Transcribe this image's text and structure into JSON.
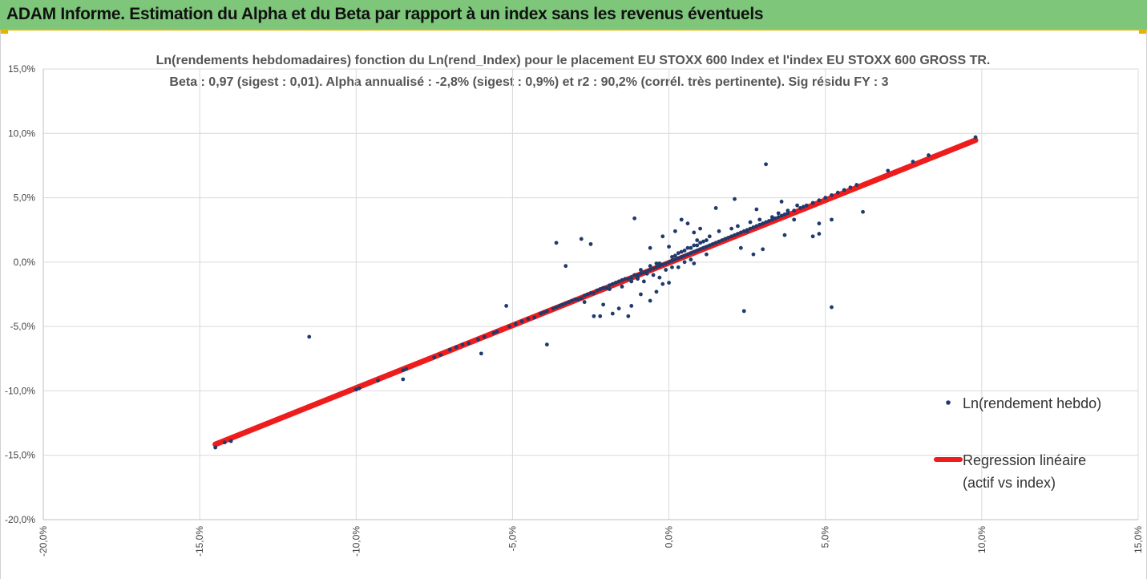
{
  "banner": {
    "title": "ADAM Informe. Estimation du Alpha et du Beta par rapport à un index sans les revenus éventuels",
    "background_color": "#7dc67a",
    "accent_color": "#e8b200"
  },
  "chart_data": {
    "type": "scatter",
    "title": "Ln(rendements hebdomadaires) fonction du Ln(rend_Index) pour le placement EU STOXX 600 Index et l'index EU STOXX 600 GROSS TR.",
    "subtitle": "Beta : 0,97 (sigest : 0,01). Alpha annualisé : -2,8% (sigest : 0,9%) et r2 : 90,2% (corrél. très pertinente). Sig résidu FY : 3",
    "xlabel": "",
    "ylabel": "",
    "xlim": [
      -0.2,
      0.15
    ],
    "ylim": [
      -0.2,
      0.15
    ],
    "x_ticks": [
      "-20,0%",
      "-15,0%",
      "-10,0%",
      "-5,0%",
      "0,0%",
      "5,0%",
      "10,0%",
      "15,0%"
    ],
    "y_ticks": [
      "-20,0%",
      "-15,0%",
      "-10,0%",
      "-5,0%",
      "0,0%",
      "5,0%",
      "10,0%",
      "15,0%"
    ],
    "grid": "vertical and horizontal",
    "legend_position": "right",
    "series": [
      {
        "name": "Ln(rendement hebdo)",
        "color": "#1f3a6b",
        "kind": "points",
        "points": [
          [
            -0.145,
            -0.144
          ],
          [
            -0.142,
            -0.14
          ],
          [
            -0.14,
            -0.139
          ],
          [
            -0.115,
            -0.058
          ],
          [
            -0.1,
            -0.099
          ],
          [
            -0.099,
            -0.098
          ],
          [
            -0.093,
            -0.092
          ],
          [
            -0.085,
            -0.084
          ],
          [
            -0.085,
            -0.091
          ],
          [
            -0.084,
            -0.083
          ],
          [
            -0.075,
            -0.074
          ],
          [
            -0.073,
            -0.072
          ],
          [
            -0.07,
            -0.068
          ],
          [
            -0.068,
            -0.066
          ],
          [
            -0.066,
            -0.064
          ],
          [
            -0.064,
            -0.063
          ],
          [
            -0.06,
            -0.071
          ],
          [
            -0.061,
            -0.06
          ],
          [
            -0.059,
            -0.058
          ],
          [
            -0.056,
            -0.055
          ],
          [
            -0.055,
            -0.054
          ],
          [
            -0.052,
            -0.034
          ],
          [
            -0.051,
            -0.05
          ],
          [
            -0.049,
            -0.048
          ],
          [
            -0.047,
            -0.046
          ],
          [
            -0.045,
            -0.044
          ],
          [
            -0.043,
            -0.043
          ],
          [
            -0.041,
            -0.04
          ],
          [
            -0.039,
            -0.064
          ],
          [
            -0.04,
            -0.039
          ],
          [
            -0.039,
            -0.038
          ],
          [
            -0.037,
            -0.036
          ],
          [
            -0.036,
            -0.035
          ],
          [
            -0.035,
            -0.034
          ],
          [
            -0.034,
            -0.033
          ],
          [
            -0.033,
            -0.032
          ],
          [
            -0.032,
            -0.031
          ],
          [
            -0.031,
            -0.03
          ],
          [
            -0.03,
            -0.029
          ],
          [
            -0.029,
            -0.029
          ],
          [
            -0.028,
            -0.028
          ],
          [
            -0.027,
            -0.026
          ],
          [
            -0.026,
            -0.025
          ],
          [
            -0.025,
            -0.024
          ],
          [
            -0.024,
            -0.024
          ],
          [
            -0.023,
            -0.022
          ],
          [
            -0.022,
            -0.021
          ],
          [
            -0.021,
            -0.02
          ],
          [
            -0.02,
            -0.02
          ],
          [
            -0.019,
            -0.018
          ],
          [
            -0.018,
            -0.017
          ],
          [
            -0.017,
            -0.016
          ],
          [
            -0.016,
            -0.015
          ],
          [
            -0.015,
            -0.014
          ],
          [
            -0.014,
            -0.013
          ],
          [
            -0.013,
            -0.013
          ],
          [
            -0.012,
            -0.012
          ],
          [
            -0.011,
            -0.01
          ],
          [
            -0.01,
            -0.01
          ],
          [
            -0.009,
            -0.009
          ],
          [
            -0.008,
            -0.008
          ],
          [
            -0.007,
            -0.007
          ],
          [
            -0.006,
            -0.006
          ],
          [
            -0.005,
            -0.005
          ],
          [
            -0.004,
            -0.004
          ],
          [
            -0.003,
            -0.003
          ],
          [
            -0.002,
            -0.002
          ],
          [
            -0.001,
            -0.001
          ],
          [
            0.0,
            0.0
          ],
          [
            0.001,
            0.001
          ],
          [
            0.002,
            0.002
          ],
          [
            0.003,
            0.003
          ],
          [
            0.004,
            0.004
          ],
          [
            0.005,
            0.005
          ],
          [
            0.006,
            0.006
          ],
          [
            0.007,
            0.007
          ],
          [
            0.008,
            0.008
          ],
          [
            0.009,
            0.009
          ],
          [
            0.01,
            0.01
          ],
          [
            0.011,
            0.011
          ],
          [
            0.012,
            0.012
          ],
          [
            0.013,
            0.013
          ],
          [
            0.014,
            0.014
          ],
          [
            0.015,
            0.015
          ],
          [
            0.016,
            0.016
          ],
          [
            0.017,
            0.017
          ],
          [
            0.018,
            0.018
          ],
          [
            0.019,
            0.019
          ],
          [
            0.02,
            0.02
          ],
          [
            0.021,
            0.021
          ],
          [
            0.022,
            0.022
          ],
          [
            0.023,
            0.023
          ],
          [
            0.024,
            0.024
          ],
          [
            0.025,
            0.025
          ],
          [
            0.026,
            0.026
          ],
          [
            0.027,
            0.027
          ],
          [
            0.028,
            0.028
          ],
          [
            0.029,
            0.029
          ],
          [
            0.03,
            0.03
          ],
          [
            0.031,
            0.031
          ],
          [
            0.032,
            0.032
          ],
          [
            0.033,
            0.033
          ],
          [
            0.034,
            0.034
          ],
          [
            0.035,
            0.035
          ],
          [
            0.036,
            0.036
          ],
          [
            0.037,
            0.037
          ],
          [
            0.038,
            0.038
          ],
          [
            0.04,
            0.04
          ],
          [
            0.042,
            0.042
          ],
          [
            0.044,
            0.044
          ],
          [
            0.046,
            0.046
          ],
          [
            0.048,
            0.048
          ],
          [
            0.05,
            0.05
          ],
          [
            0.052,
            0.052
          ],
          [
            0.054,
            0.054
          ],
          [
            0.056,
            0.056
          ],
          [
            0.058,
            0.058
          ],
          [
            0.06,
            0.06
          ],
          [
            0.062,
            0.039
          ],
          [
            0.07,
            0.071
          ],
          [
            0.078,
            0.078
          ],
          [
            0.083,
            0.083
          ],
          [
            0.098,
            0.097
          ],
          [
            -0.036,
            0.015
          ],
          [
            -0.028,
            0.018
          ],
          [
            -0.025,
            0.014
          ],
          [
            -0.033,
            -0.003
          ],
          [
            -0.011,
            0.034
          ],
          [
            -0.006,
            0.011
          ],
          [
            -0.002,
            0.02
          ],
          [
            0.0,
            0.012
          ],
          [
            0.002,
            0.024
          ],
          [
            0.004,
            0.033
          ],
          [
            0.006,
            0.03
          ],
          [
            0.008,
            0.023
          ],
          [
            0.01,
            0.026
          ],
          [
            0.031,
            0.076
          ],
          [
            0.021,
            0.049
          ],
          [
            0.015,
            0.042
          ],
          [
            0.025,
            0.024
          ],
          [
            0.028,
            0.041
          ],
          [
            0.036,
            0.047
          ],
          [
            0.04,
            0.033
          ],
          [
            0.043,
            0.043
          ],
          [
            0.048,
            0.03
          ],
          [
            0.052,
            0.033
          ],
          [
            0.052,
            -0.035
          ],
          [
            0.046,
            0.02
          ],
          [
            0.048,
            0.022
          ],
          [
            0.037,
            0.021
          ],
          [
            0.03,
            0.01
          ],
          [
            0.027,
            0.006
          ],
          [
            0.023,
            0.011
          ],
          [
            0.024,
            -0.038
          ],
          [
            0.012,
            0.006
          ],
          [
            0.008,
            -0.001
          ],
          [
            0.003,
            -0.004
          ],
          [
            0.0,
            -0.016
          ],
          [
            -0.002,
            -0.017
          ],
          [
            -0.004,
            -0.023
          ],
          [
            -0.006,
            -0.03
          ],
          [
            -0.009,
            -0.025
          ],
          [
            -0.01,
            -0.012
          ],
          [
            -0.012,
            -0.034
          ],
          [
            -0.013,
            -0.042
          ],
          [
            -0.016,
            -0.036
          ],
          [
            -0.018,
            -0.04
          ],
          [
            -0.021,
            -0.033
          ],
          [
            -0.022,
            -0.042
          ],
          [
            -0.024,
            -0.042
          ],
          [
            -0.027,
            -0.031
          ],
          [
            -0.008,
            -0.015
          ],
          [
            -0.005,
            -0.01
          ],
          [
            -0.003,
            -0.012
          ],
          [
            -0.001,
            -0.006
          ],
          [
            0.001,
            -0.004
          ],
          [
            0.005,
            0.0
          ],
          [
            0.007,
            0.002
          ],
          [
            0.009,
            0.017
          ],
          [
            0.011,
            0.016
          ],
          [
            0.013,
            0.02
          ],
          [
            0.016,
            0.024
          ],
          [
            0.018,
            0.018
          ],
          [
            0.02,
            0.026
          ],
          [
            0.022,
            0.028
          ],
          [
            0.026,
            0.031
          ],
          [
            0.029,
            0.033
          ],
          [
            0.033,
            0.035
          ],
          [
            0.035,
            0.038
          ],
          [
            0.038,
            0.04
          ],
          [
            0.041,
            0.044
          ],
          [
            -0.019,
            -0.021
          ],
          [
            -0.015,
            -0.019
          ],
          [
            -0.012,
            -0.015
          ],
          [
            -0.01,
            -0.013
          ],
          [
            -0.007,
            -0.009
          ],
          [
            -0.003,
            -0.001
          ],
          [
            0.002,
            0.005
          ],
          [
            0.004,
            0.008
          ],
          [
            0.006,
            0.011
          ],
          [
            0.008,
            0.013
          ],
          [
            0.01,
            0.015
          ],
          [
            0.012,
            0.017
          ],
          [
            -0.009,
            -0.006
          ],
          [
            -0.006,
            -0.003
          ],
          [
            -0.004,
            -0.001
          ],
          [
            0.001,
            0.004
          ],
          [
            0.003,
            0.007
          ],
          [
            0.005,
            0.009
          ],
          [
            0.007,
            0.011
          ],
          [
            0.009,
            0.013
          ]
        ]
      },
      {
        "name": "Regression linéaire\n(actif vs index)",
        "color": "#ee1c1c",
        "kind": "line",
        "points": [
          [
            -0.145,
            -0.1415
          ],
          [
            0.098,
            0.0947
          ]
        ]
      }
    ]
  },
  "legend": {
    "items": [
      {
        "label_lines": [
          "Ln(rendement hebdo)"
        ],
        "color": "#1f3a6b",
        "marker": "point"
      },
      {
        "label_lines": [
          "Regression linéaire",
          "(actif vs index)"
        ],
        "color": "#ee1c1c",
        "marker": "line"
      }
    ]
  }
}
